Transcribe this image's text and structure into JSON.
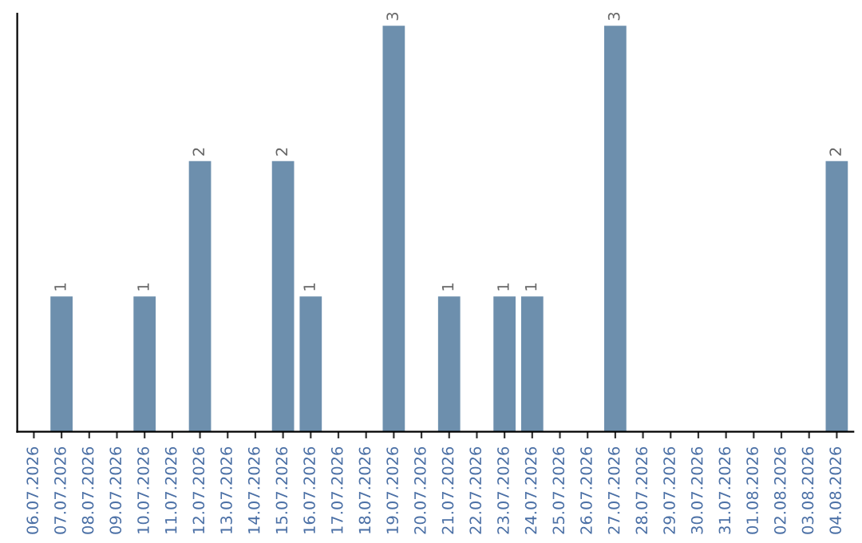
{
  "chart_data": {
    "type": "bar",
    "categories": [
      "06.07.2026",
      "07.07.2026",
      "08.07.2026",
      "09.07.2026",
      "10.07.2026",
      "11.07.2026",
      "12.07.2026",
      "13.07.2026",
      "14.07.2026",
      "15.07.2026",
      "16.07.2026",
      "17.07.2026",
      "18.07.2026",
      "19.07.2026",
      "20.07.2026",
      "21.07.2026",
      "22.07.2026",
      "23.07.2026",
      "24.07.2026",
      "25.07.2026",
      "26.07.2026",
      "27.07.2026",
      "28.07.2026",
      "29.07.2026",
      "30.07.2026",
      "31.07.2026",
      "01.08.2026",
      "02.08.2026",
      "03.08.2026",
      "04.08.2026"
    ],
    "values": [
      0,
      1,
      0,
      0,
      1,
      0,
      2,
      0,
      0,
      2,
      1,
      0,
      0,
      3,
      0,
      1,
      0,
      1,
      1,
      0,
      0,
      3,
      0,
      0,
      0,
      0,
      0,
      0,
      0,
      2
    ],
    "value_labels": [
      null,
      "1",
      null,
      null,
      "1",
      null,
      "2",
      null,
      null,
      "2",
      "1",
      null,
      null,
      "3",
      null,
      "1",
      null,
      "1",
      "1",
      null,
      null,
      "3",
      null,
      null,
      null,
      null,
      null,
      null,
      null,
      "2"
    ],
    "color": "#6d8fad",
    "grid": false,
    "legend": false
  }
}
